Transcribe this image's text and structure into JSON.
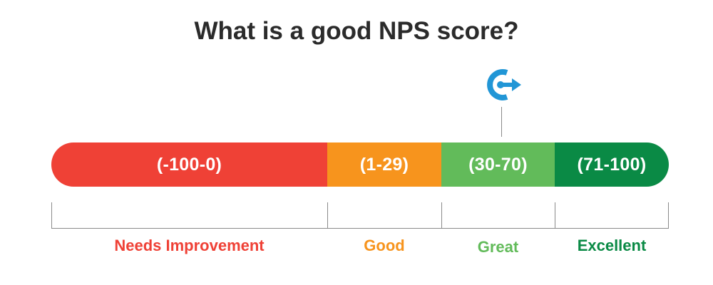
{
  "title": "What is a good NPS score?",
  "marker": {
    "icon": "retention-arrow-icon",
    "color": "#2196d6"
  },
  "segments": [
    {
      "range": "(-100-0)",
      "label": "Needs Improvement",
      "color": "#ef4136"
    },
    {
      "range": "(1-29)",
      "label": "Good",
      "color": "#f7941d"
    },
    {
      "range": "(30-70)",
      "label": "Great",
      "color": "#62bb5a"
    },
    {
      "range": "(71-100)",
      "label": "Excellent",
      "color": "#0a8a45"
    }
  ]
}
